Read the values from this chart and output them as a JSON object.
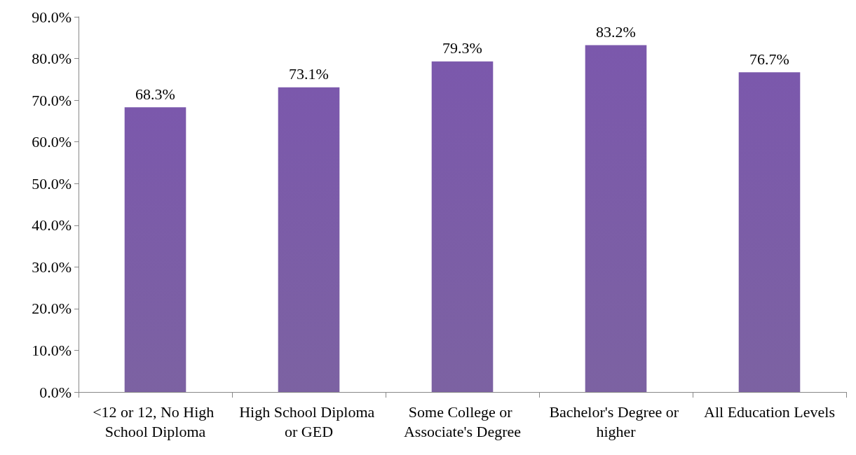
{
  "chart_data": {
    "type": "bar",
    "categories": [
      "<12 or 12, No High School Diploma",
      "High School Diploma or GED",
      "Some College or Associate's Degree",
      "Bachelor's Degree or higher",
      "All Education Levels"
    ],
    "values": [
      68.3,
      73.1,
      79.3,
      83.2,
      76.7
    ],
    "value_labels": [
      "68.3%",
      "73.1%",
      "79.3%",
      "83.2%",
      "76.7%"
    ],
    "color": "#6b4d96",
    "ylim": [
      0,
      90
    ],
    "yticks": [
      {
        "value": 0,
        "label": "0.0%"
      },
      {
        "value": 10,
        "label": "10.0%"
      },
      {
        "value": 20,
        "label": "20.0%"
      },
      {
        "value": 30,
        "label": "30.0%"
      },
      {
        "value": 40,
        "label": "40.0%"
      },
      {
        "value": 50,
        "label": "50.0%"
      },
      {
        "value": 60,
        "label": "60.0%"
      },
      {
        "value": 70,
        "label": "70.0%"
      },
      {
        "value": 80,
        "label": "80.0%"
      },
      {
        "value": 90,
        "label": "90.0%"
      }
    ],
    "grid": false
  }
}
